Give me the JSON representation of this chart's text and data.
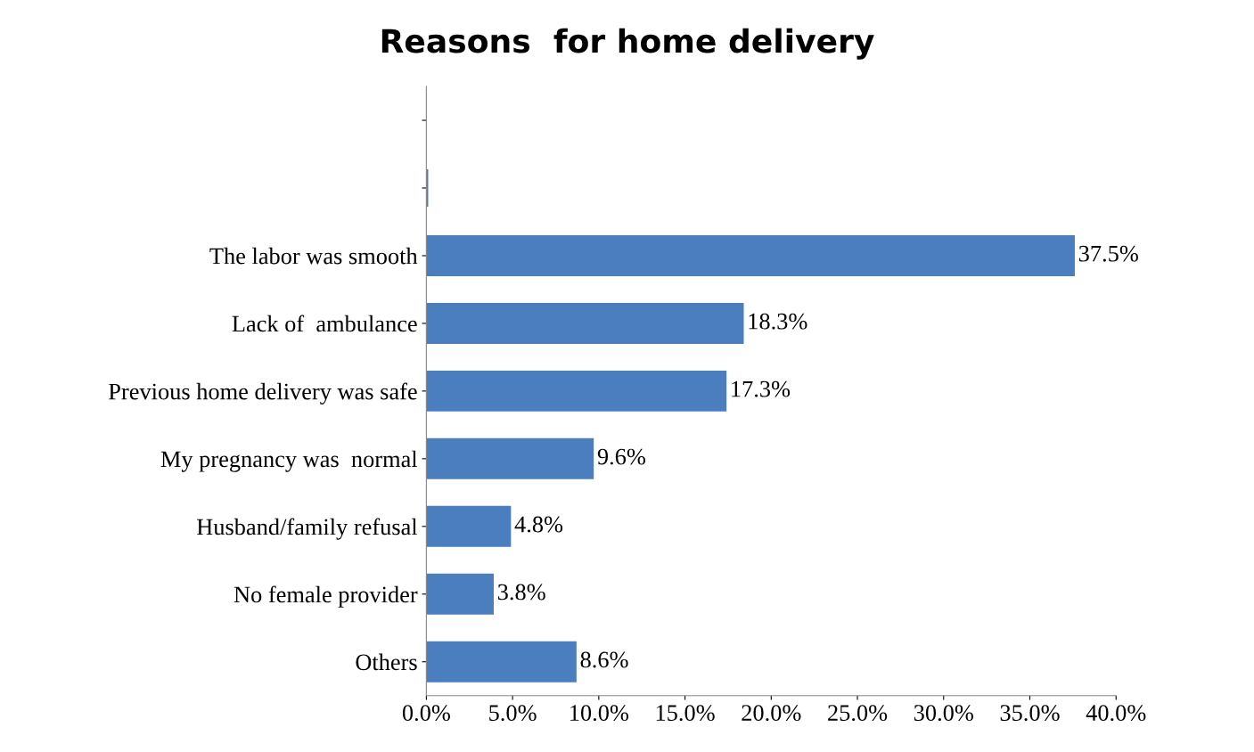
{
  "chart_data": {
    "type": "bar",
    "orientation": "horizontal",
    "title": "Reasons  for home delivery",
    "categories": [
      null,
      null,
      "The labor was smooth",
      "Lack of  ambulance",
      "Previous home delivery was safe",
      "My pregnancy was  normal",
      "Husband/family refusal",
      "No female provider",
      "Others"
    ],
    "values": [
      null,
      0,
      37.5,
      18.3,
      17.3,
      9.6,
      4.8,
      3.8,
      8.6
    ],
    "value_labels": [
      null,
      null,
      "37.5%",
      "18.3%",
      "17.3%",
      "9.6%",
      "4.8%",
      "3.8%",
      "8.6%"
    ],
    "color": "#4a7ebf",
    "xlim": [
      0,
      40
    ],
    "xticks": [
      {
        "value": 0,
        "label": "0.0%"
      },
      {
        "value": 5,
        "label": "5.0%"
      },
      {
        "value": 10,
        "label": "10.0%"
      },
      {
        "value": 15,
        "label": "15.0%"
      },
      {
        "value": 20,
        "label": "20.0%"
      },
      {
        "value": 25,
        "label": "25.0%"
      },
      {
        "value": 30,
        "label": "30.0%"
      },
      {
        "value": 35,
        "label": "35.0%"
      },
      {
        "value": 40,
        "label": "40.0%"
      }
    ],
    "grid": false,
    "legend": false
  }
}
